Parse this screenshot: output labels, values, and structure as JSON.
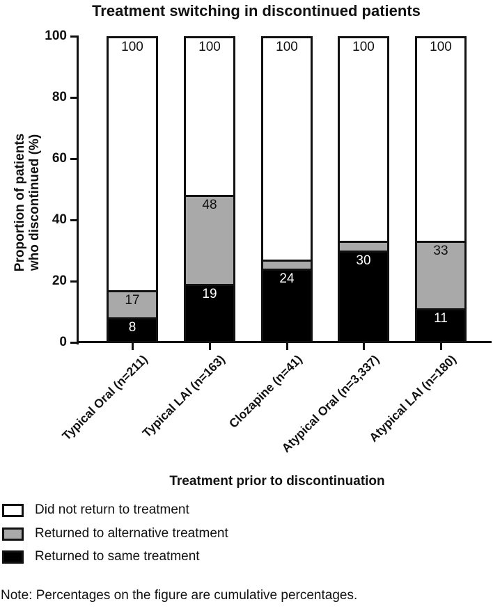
{
  "title": "Treatment switching in discontinued patients",
  "note": "Note: Percentages on the figure are cumulative percentages.",
  "chart_data": {
    "type": "bar",
    "subtype": "stacked-cumulative-percent",
    "title": "Treatment switching in discontinued patients",
    "xlabel": "Treatment prior to discontinuation",
    "ylabel": "Proportion of patients who discontinued (%)",
    "ylabel_lines": [
      "Proportion of patients",
      "who discontinued (%)"
    ],
    "ylim": [
      0,
      100
    ],
    "yticks": [
      0,
      20,
      40,
      60,
      80,
      100
    ],
    "grid": false,
    "categories": [
      "Typical Oral (n=211)",
      "Typical LAI (n=163)",
      "Clozapine (n=41)",
      "Atypical Oral (n=3,337)",
      "Atypical LAI (n=180)"
    ],
    "series": [
      {
        "name": "Returned to same treatment",
        "color": "#000000",
        "text_color": "#ffffff",
        "cumulative": [
          8,
          19,
          24,
          30,
          11
        ]
      },
      {
        "name": "Returned to alternative treatment",
        "color": "#a9a9a9",
        "text_color": "#111111",
        "cumulative": [
          17,
          48,
          27,
          33,
          33
        ]
      },
      {
        "name": "Did not return to treatment",
        "color": "#ffffff",
        "text_color": "#111111",
        "cumulative": [
          100,
          100,
          100,
          100,
          100
        ]
      }
    ],
    "segment_labels": [
      {
        "same": "8",
        "alternative": "17",
        "none": "100"
      },
      {
        "same": "19",
        "alternative": "48",
        "none": "100"
      },
      {
        "same": "24",
        "alternative": null,
        "none": "100"
      },
      {
        "same": "30",
        "alternative": null,
        "none": "100"
      },
      {
        "same": "11",
        "alternative": "33",
        "none": "100"
      }
    ],
    "legend_position": "bottom-left",
    "legend": [
      {
        "label": "Did not return to treatment",
        "color": "#ffffff"
      },
      {
        "label": "Returned to alternative treatment",
        "color": "#a9a9a9"
      },
      {
        "label": "Returned to same treatment",
        "color": "#000000"
      }
    ]
  }
}
